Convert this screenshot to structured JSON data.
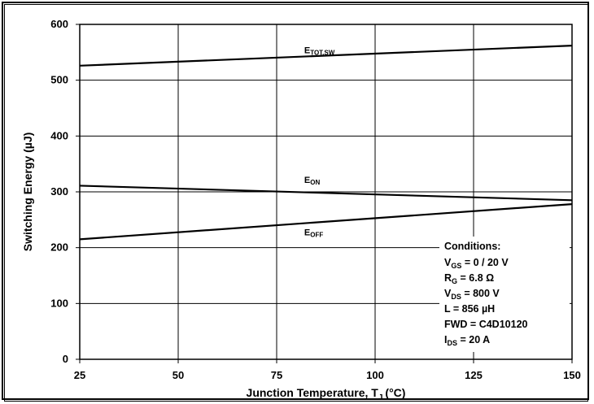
{
  "chart_data": {
    "type": "line",
    "xlabel": "Junction Temperature, T",
    "xlabel_sub": "J",
    "xlabel_unit": "(°C)",
    "ylabel": "Switching Energy (µJ)",
    "xlim": [
      25,
      150
    ],
    "ylim": [
      0,
      600
    ],
    "x_ticks": [
      25,
      50,
      75,
      100,
      125,
      150
    ],
    "y_ticks": [
      0,
      100,
      200,
      300,
      400,
      500,
      600
    ],
    "grid": true,
    "series": [
      {
        "name": "E",
        "name_sub": "TOT,SW",
        "x": [
          25,
          150
        ],
        "y": [
          526,
          562
        ]
      },
      {
        "name": "E",
        "name_sub": "ON",
        "x": [
          25,
          150
        ],
        "y": [
          311,
          285
        ]
      },
      {
        "name": "E",
        "name_sub": "OFF",
        "x": [
          25,
          150
        ],
        "y": [
          215,
          278
        ]
      }
    ],
    "annotation": {
      "title": "Conditions:",
      "lines": [
        {
          "main": "V",
          "sub": "GS",
          "rest": " = 0 / 20 V"
        },
        {
          "main": "R",
          "sub": "G",
          "rest": " = 6.8 Ω"
        },
        {
          "main": "V",
          "sub": "DS",
          "rest": " = 800 V"
        },
        {
          "main": "L = 856 µH",
          "sub": "",
          "rest": ""
        },
        {
          "main": "FWD = C4D10120",
          "sub": "",
          "rest": ""
        },
        {
          "main": "I",
          "sub": "DS",
          "rest": " = 20 A"
        }
      ]
    },
    "line_color": "#000000",
    "grid_color": "#000000"
  }
}
